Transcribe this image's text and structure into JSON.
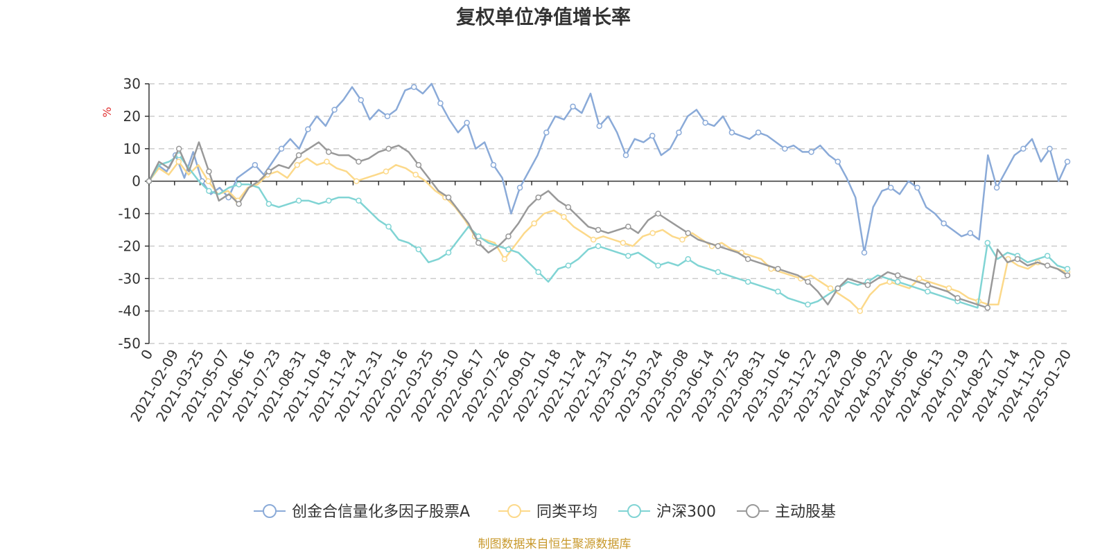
{
  "chart_data": {
    "type": "line",
    "title": "复权单位净值增长率",
    "ylabel": "%",
    "ylim": [
      -50,
      30
    ],
    "y_ticks": [
      30,
      20,
      10,
      0,
      -10,
      -20,
      -30,
      -40,
      -50
    ],
    "grid": true,
    "x_ticks": [
      "0",
      "2021-02-09",
      "2021-03-25",
      "2021-05-07",
      "2021-06-16",
      "2021-07-23",
      "2021-08-31",
      "2021-10-18",
      "2021-11-24",
      "2021-12-31",
      "2022-02-16",
      "2022-03-25",
      "2022-05-10",
      "2022-06-17",
      "2022-07-26",
      "2022-09-01",
      "2022-10-18",
      "2022-11-24",
      "2022-12-31",
      "2023-02-15",
      "2023-03-24",
      "2023-05-08",
      "2023-06-14",
      "2023-07-25",
      "2023-08-31",
      "2023-10-16",
      "2023-11-22",
      "2023-12-29",
      "2024-02-06",
      "2024-03-22",
      "2024-05-06",
      "2024-06-13",
      "2024-07-19",
      "2024-08-27",
      "2024-10-14",
      "2024-11-20",
      "2025-01-20"
    ],
    "legend_position": "bottom",
    "series": [
      {
        "name": "创金合信量化多因子股票A",
        "color": "#8aaad8",
        "values": [
          0,
          5,
          3,
          8,
          1,
          9,
          0,
          -4,
          -2,
          -5,
          1,
          3,
          5,
          2,
          6,
          10,
          13,
          10,
          16,
          20,
          17,
          22,
          25,
          29,
          25,
          19,
          22,
          20,
          22,
          28,
          29,
          27,
          30,
          24,
          19,
          15,
          18,
          10,
          12,
          5,
          1,
          -10,
          -2,
          3,
          8,
          15,
          20,
          19,
          23,
          21,
          27,
          17,
          20,
          15,
          8,
          13,
          12,
          14,
          8,
          10,
          15,
          20,
          22,
          18,
          17,
          20,
          15,
          14,
          13,
          15,
          14,
          12,
          10,
          11,
          9,
          9,
          11,
          8,
          6,
          1,
          -5,
          -22,
          -8,
          -3,
          -2,
          -4,
          0,
          -2,
          -8,
          -10,
          -13,
          -15,
          -17,
          -16,
          -18,
          8,
          -2,
          3,
          8,
          10,
          13,
          6,
          10,
          0,
          6
        ]
      },
      {
        "name": "同类平均",
        "color": "#fcd98a",
        "values": [
          0,
          4,
          2,
          6,
          2,
          5,
          0,
          -4,
          -3,
          -6,
          -2,
          -1,
          2,
          3,
          1,
          5,
          7,
          5,
          6,
          4,
          3,
          0,
          1,
          2,
          3,
          5,
          4,
          2,
          0,
          -3,
          -5,
          -8,
          -12,
          -17,
          -18,
          -19,
          -24,
          -20,
          -16,
          -13,
          -10,
          -9,
          -11,
          -14,
          -16,
          -18,
          -17,
          -18,
          -19,
          -20,
          -17,
          -16,
          -15,
          -17,
          -18,
          -16,
          -18,
          -20,
          -19,
          -21,
          -22,
          -23,
          -24,
          -27,
          -28,
          -29,
          -30,
          -29,
          -31,
          -33,
          -35,
          -37,
          -40,
          -35,
          -32,
          -31,
          -32,
          -33,
          -30,
          -31,
          -32,
          -33,
          -34,
          -36,
          -37,
          -38,
          -38,
          -24,
          -26,
          -27,
          -25,
          -26,
          -27,
          -28
        ]
      },
      {
        "name": "沪深300",
        "color": "#80d4d4",
        "values": [
          0,
          5,
          6,
          8,
          4,
          0,
          -3,
          -4,
          -2,
          -1,
          -1,
          -2,
          -7,
          -8,
          -7,
          -6,
          -6,
          -7,
          -6,
          -5,
          -5,
          -6,
          -9,
          -12,
          -14,
          -18,
          -19,
          -21,
          -25,
          -24,
          -22,
          -18,
          -14,
          -17,
          -19,
          -20,
          -21,
          -22,
          -25,
          -28,
          -31,
          -27,
          -26,
          -24,
          -21,
          -20,
          -21,
          -22,
          -23,
          -22,
          -24,
          -26,
          -25,
          -26,
          -24,
          -26,
          -27,
          -28,
          -29,
          -30,
          -31,
          -32,
          -33,
          -34,
          -36,
          -37,
          -38,
          -37,
          -35,
          -33,
          -31,
          -32,
          -31,
          -29,
          -30,
          -31,
          -32,
          -33,
          -34,
          -35,
          -36,
          -37,
          -38,
          -39,
          -19,
          -24,
          -22,
          -23,
          -25,
          -24,
          -23,
          -26,
          -27
        ]
      },
      {
        "name": "主动股基",
        "color": "#999999",
        "values": [
          0,
          6,
          4,
          10,
          3,
          12,
          3,
          -6,
          -4,
          -7,
          -2,
          0,
          3,
          5,
          4,
          8,
          10,
          12,
          9,
          8,
          8,
          6,
          7,
          9,
          10,
          11,
          9,
          5,
          1,
          -3,
          -5,
          -9,
          -13,
          -19,
          -22,
          -20,
          -17,
          -13,
          -8,
          -5,
          -3,
          -6,
          -8,
          -11,
          -14,
          -15,
          -16,
          -15,
          -14,
          -16,
          -12,
          -10,
          -12,
          -14,
          -16,
          -18,
          -19,
          -20,
          -21,
          -22,
          -24,
          -25,
          -26,
          -27,
          -28,
          -29,
          -31,
          -34,
          -38,
          -33,
          -30,
          -31,
          -32,
          -30,
          -28,
          -29,
          -30,
          -31,
          -32,
          -33,
          -34,
          -36,
          -37,
          -38,
          -39,
          -21,
          -25,
          -24,
          -26,
          -25,
          -26,
          -27,
          -29
        ]
      }
    ],
    "source": "制图数据来自恒生聚源数据库"
  }
}
